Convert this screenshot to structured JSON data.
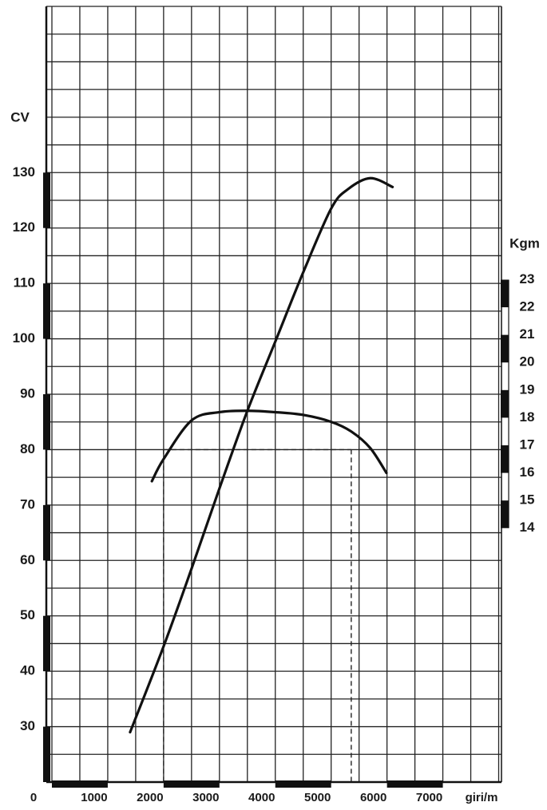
{
  "chart_data": {
    "type": "line",
    "y_label": "CV",
    "y2_label": "Kgm",
    "x_label": "giri/m",
    "xlim": [
      -100,
      8050
    ],
    "ylim": [
      20,
      160
    ],
    "y2lim": [
      4.8,
      32.9
    ],
    "xticks": [
      0,
      1000,
      2000,
      3000,
      4000,
      5000,
      6000,
      7000
    ],
    "yticks": [
      30,
      40,
      50,
      60,
      70,
      80,
      90,
      100,
      110,
      120,
      130
    ],
    "y2ticks": [
      14,
      15,
      16,
      17,
      18,
      19,
      20,
      21,
      22,
      23
    ],
    "xgrid": [
      0,
      500,
      1000,
      1500,
      2000,
      2500,
      3000,
      3500,
      4000,
      4500,
      5000,
      5500,
      6000,
      6500,
      7000,
      7500,
      8000
    ],
    "ygrid": [
      20,
      25,
      30,
      35,
      40,
      45,
      50,
      55,
      60,
      65,
      70,
      75,
      80,
      85,
      90,
      95,
      100,
      105,
      110,
      115,
      120,
      125,
      130,
      135,
      140,
      145,
      150,
      155,
      160
    ],
    "grid": true,
    "series": [
      {
        "color": "#111111",
        "x": [
          1400,
          2000,
          2500,
          3000,
          3500,
          4000,
          4500,
          5000,
          5300,
          5700,
          6100
        ],
        "values": [
          29,
          44.5,
          58.5,
          73,
          87,
          99.5,
          112,
          123.5,
          127,
          129,
          127.4
        ]
      },
      {
        "color": "#111111",
        "axis": "y2",
        "x": [
          1790,
          2000,
          2500,
          3000,
          3500,
          4000,
          4500,
          5000,
          5360,
          5700,
          5990
        ],
        "values": [
          15.7,
          16.5,
          17.9,
          18.2,
          18.25,
          18.2,
          18.1,
          17.85,
          17.5,
          16.9,
          16.0
        ]
      }
    ],
    "reference_lines": {
      "x": [
        2000,
        5360
      ],
      "y": 80
    }
  }
}
